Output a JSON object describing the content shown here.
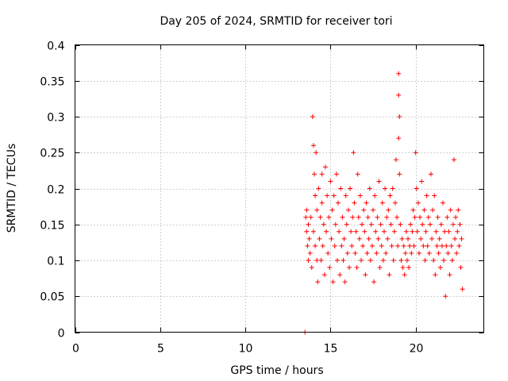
{
  "chart_data": {
    "type": "scatter",
    "title": "Day 205 of 2024, SRMTID for receiver tori",
    "xlabel": "GPS time / hours",
    "ylabel": "SRMTID / TECUs",
    "xlim": [
      0,
      24
    ],
    "ylim": [
      0,
      0.4
    ],
    "xticks": [
      "0",
      "5",
      "10",
      "15",
      "20"
    ],
    "xtick_values": [
      0,
      5,
      10,
      15,
      20
    ],
    "yticks": [
      "0",
      "0.05",
      "0.1",
      "0.15",
      "0.2",
      "0.25",
      "0.3",
      "0.35",
      "0.4"
    ],
    "ytick_values": [
      0,
      0.05,
      0.1,
      0.15,
      0.2,
      0.25,
      0.3,
      0.35,
      0.4
    ],
    "grid": true,
    "marker": "plus",
    "color": "#ff0000",
    "series": [
      {
        "name": "SRMTID",
        "x": [
          13.5,
          13.55,
          13.6,
          13.6,
          13.65,
          13.7,
          13.7,
          13.75,
          13.8,
          13.85,
          13.9,
          13.95,
          14.0,
          14.0,
          14.05,
          14.1,
          14.1,
          14.15,
          14.2,
          14.2,
          14.25,
          14.3,
          14.35,
          14.4,
          14.45,
          14.5,
          14.5,
          14.55,
          14.6,
          14.65,
          14.7,
          14.75,
          14.8,
          14.85,
          14.9,
          14.95,
          15.0,
          15.05,
          15.1,
          15.15,
          15.2,
          15.25,
          15.3,
          15.35,
          15.4,
          15.45,
          15.5,
          15.55,
          15.6,
          15.65,
          15.7,
          15.75,
          15.8,
          15.85,
          15.9,
          15.95,
          16.0,
          16.05,
          16.1,
          16.15,
          16.2,
          16.25,
          16.3,
          16.35,
          16.4,
          16.45,
          16.5,
          16.55,
          16.6,
          16.65,
          16.7,
          16.75,
          16.8,
          16.85,
          16.9,
          16.95,
          17.0,
          17.05,
          17.1,
          17.15,
          17.2,
          17.25,
          17.3,
          17.35,
          17.4,
          17.45,
          17.5,
          17.55,
          17.6,
          17.65,
          17.7,
          17.75,
          17.8,
          17.85,
          17.9,
          17.95,
          18.0,
          18.05,
          18.1,
          18.15,
          18.2,
          18.25,
          18.3,
          18.35,
          18.4,
          18.45,
          18.5,
          18.55,
          18.6,
          18.65,
          18.7,
          18.75,
          18.8,
          18.85,
          18.9,
          18.95,
          19.0,
          19.0,
          19.0,
          19.05,
          19.05,
          19.1,
          19.15,
          19.2,
          19.25,
          19.3,
          19.35,
          19.4,
          19.45,
          19.5,
          19.55,
          19.6,
          19.65,
          19.7,
          19.75,
          19.8,
          19.85,
          19.9,
          19.95,
          20.0,
          20.05,
          20.1,
          20.15,
          20.2,
          20.25,
          20.3,
          20.35,
          20.4,
          20.45,
          20.5,
          20.55,
          20.6,
          20.65,
          20.7,
          20.75,
          20.8,
          20.85,
          20.9,
          20.95,
          21.0,
          21.05,
          21.1,
          21.15,
          21.2,
          21.25,
          21.3,
          21.35,
          21.4,
          21.45,
          21.5,
          21.55,
          21.6,
          21.65,
          21.7,
          21.75,
          21.8,
          21.85,
          21.9,
          21.95,
          22.0,
          22.05,
          22.1,
          22.15,
          22.2,
          22.25,
          22.3,
          22.35,
          22.4,
          22.45,
          22.5,
          22.55,
          22.6,
          22.65,
          22.7,
          22.75
        ],
        "y": [
          0.0,
          0.16,
          0.14,
          0.17,
          0.12,
          0.15,
          0.1,
          0.13,
          0.11,
          0.16,
          0.09,
          0.3,
          0.26,
          0.14,
          0.22,
          0.19,
          0.12,
          0.25,
          0.1,
          0.17,
          0.07,
          0.2,
          0.13,
          0.16,
          0.1,
          0.18,
          0.22,
          0.12,
          0.15,
          0.08,
          0.23,
          0.14,
          0.19,
          0.11,
          0.16,
          0.09,
          0.21,
          0.13,
          0.17,
          0.07,
          0.19,
          0.12,
          0.15,
          0.22,
          0.1,
          0.18,
          0.14,
          0.08,
          0.2,
          0.12,
          0.16,
          0.1,
          0.13,
          0.07,
          0.19,
          0.15,
          0.11,
          0.17,
          0.09,
          0.2,
          0.14,
          0.12,
          0.16,
          0.25,
          0.18,
          0.11,
          0.14,
          0.09,
          0.22,
          0.16,
          0.13,
          0.19,
          0.1,
          0.15,
          0.12,
          0.17,
          0.14,
          0.08,
          0.18,
          0.11,
          0.16,
          0.13,
          0.2,
          0.1,
          0.15,
          0.12,
          0.17,
          0.07,
          0.19,
          0.14,
          0.11,
          0.16,
          0.13,
          0.21,
          0.09,
          0.15,
          0.12,
          0.18,
          0.1,
          0.14,
          0.2,
          0.11,
          0.16,
          0.13,
          0.17,
          0.08,
          0.19,
          0.15,
          0.12,
          0.2,
          0.1,
          0.14,
          0.18,
          0.24,
          0.16,
          0.12,
          0.36,
          0.33,
          0.27,
          0.3,
          0.22,
          0.15,
          0.1,
          0.13,
          0.09,
          0.12,
          0.08,
          0.11,
          0.14,
          0.1,
          0.13,
          0.09,
          0.12,
          0.15,
          0.11,
          0.14,
          0.17,
          0.12,
          0.16,
          0.25,
          0.2,
          0.14,
          0.18,
          0.11,
          0.16,
          0.13,
          0.21,
          0.15,
          0.12,
          0.17,
          0.1,
          0.14,
          0.19,
          0.12,
          0.16,
          0.11,
          0.15,
          0.22,
          0.13,
          0.17,
          0.1,
          0.19,
          0.08,
          0.14,
          0.12,
          0.16,
          0.11,
          0.13,
          0.09,
          0.15,
          0.12,
          0.18,
          0.1,
          0.14,
          0.05,
          0.12,
          0.16,
          0.11,
          0.14,
          0.08,
          0.17,
          0.12,
          0.1,
          0.15,
          0.24,
          0.13,
          0.16,
          0.11,
          0.14,
          0.17,
          0.12,
          0.15,
          0.09,
          0.13,
          0.06
        ]
      }
    ]
  }
}
